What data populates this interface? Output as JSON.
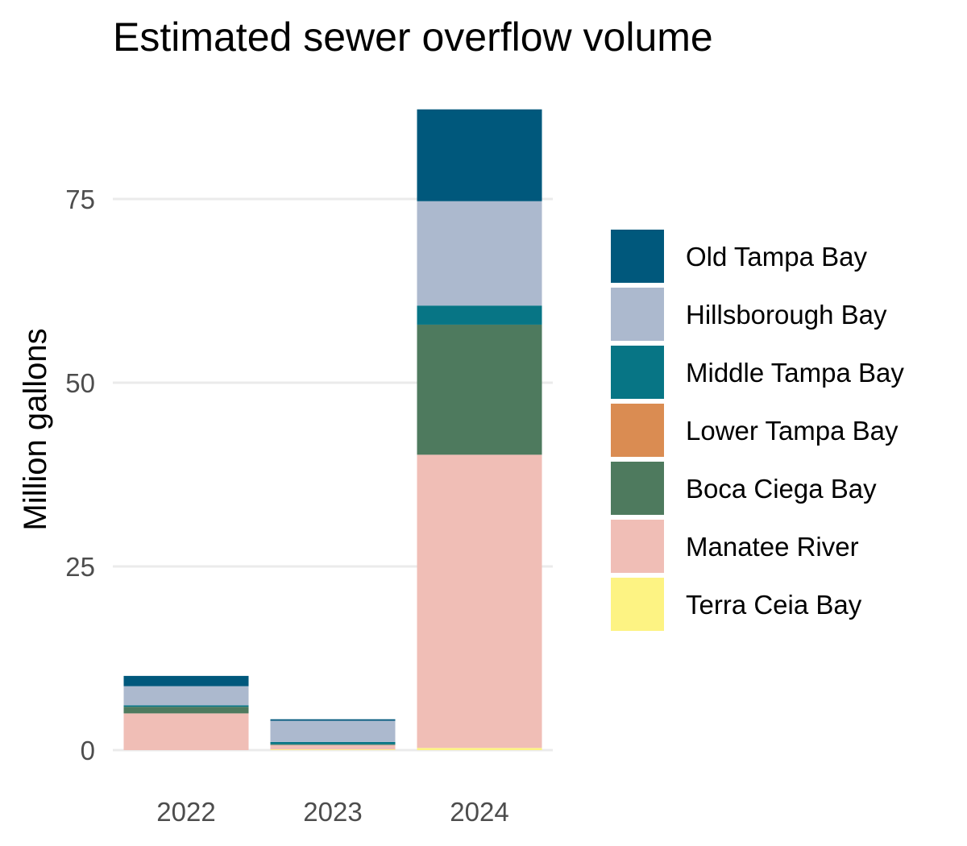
{
  "chart_data": {
    "type": "bar",
    "stacked": true,
    "title": "Estimated sewer overflow volume",
    "xlabel": "",
    "ylabel": "Million gallons",
    "categories": [
      "2022",
      "2023",
      "2024"
    ],
    "ylim": [
      0,
      90
    ],
    "yticks": [
      0,
      25,
      50,
      75
    ],
    "grid": true,
    "legend_position": "right",
    "series": [
      {
        "name": "Terra Ceia Bay",
        "color": "#FDF383",
        "values": [
          0.0,
          0.1,
          0.3
        ]
      },
      {
        "name": "Manatee River",
        "color": "#F0BEB6",
        "values": [
          5.0,
          0.6,
          39.9
        ]
      },
      {
        "name": "Boca Ciega Bay",
        "color": "#4E7A5E",
        "values": [
          0.9,
          0.1,
          17.7
        ]
      },
      {
        "name": "Lower Tampa Bay",
        "color": "#DA8C52",
        "values": [
          0.0,
          0.0,
          0.0
        ]
      },
      {
        "name": "Middle Tampa Bay",
        "color": "#077585",
        "values": [
          0.2,
          0.3,
          2.6
        ]
      },
      {
        "name": "Hillsborough Bay",
        "color": "#ACB9CE",
        "values": [
          2.6,
          2.9,
          14.2
        ]
      },
      {
        "name": "Old Tampa Bay",
        "color": "#00587C",
        "values": [
          1.4,
          0.2,
          12.5
        ]
      }
    ],
    "legend_order": [
      "Old Tampa Bay",
      "Hillsborough Bay",
      "Middle Tampa Bay",
      "Lower Tampa Bay",
      "Boca Ciega Bay",
      "Manatee River",
      "Terra Ceia Bay"
    ]
  }
}
